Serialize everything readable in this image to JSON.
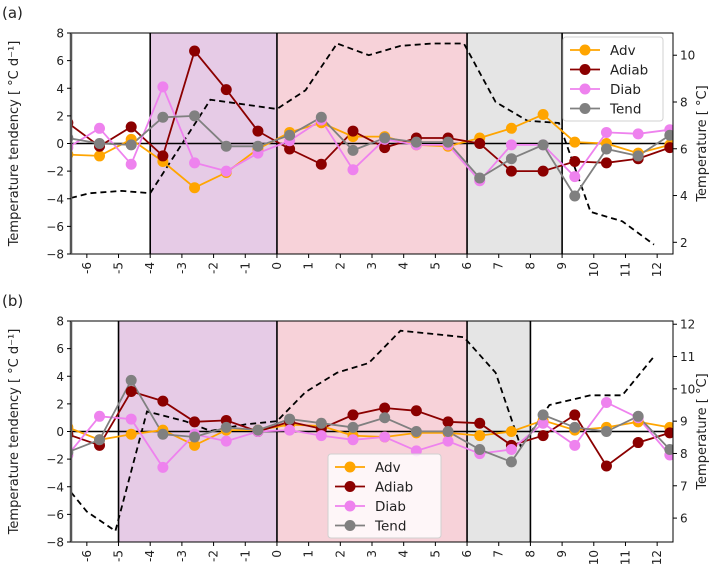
{
  "chart_data": [
    {
      "type": "line",
      "panel_label": "(a)",
      "xlabel": "",
      "ylabel": "Temperature tendency [$^\\circ C\\,d^{-1}$]",
      "ylabel_text": "Temperature tendency [ °C d⁻¹]",
      "y2label_text": "Temperature [ °C]",
      "xlim": [
        -6.5,
        12.5
      ],
      "ylim": [
        -8,
        8
      ],
      "y2lim": [
        1.5,
        10.95
      ],
      "xticks": [
        -6,
        -5,
        -4,
        -3,
        -2,
        -1,
        0,
        1,
        2,
        3,
        4,
        5,
        6,
        7,
        8,
        9,
        10,
        11,
        12
      ],
      "xtick_labels": [
        "-6",
        "-5",
        "-4",
        "-3",
        "-2",
        "-1",
        "0",
        "1",
        "2",
        "3",
        "4",
        "5",
        "6",
        "7",
        "8",
        "9",
        "10",
        "11",
        "12"
      ],
      "yticks": [
        8,
        6,
        4,
        2,
        0,
        -2,
        -4,
        -6,
        -8
      ],
      "ytick_labels": [
        "8",
        "6",
        "4",
        "2",
        "0",
        "−2",
        "−4",
        "−6",
        "−8"
      ],
      "y2ticks": [
        10,
        8,
        6,
        4,
        2
      ],
      "y2tick_labels": [
        "10",
        "8",
        "6",
        "4",
        "2"
      ],
      "legend_position": "upper-right",
      "shaded_regions": [
        {
          "from": -4,
          "to": 0,
          "color": "#e6cbe6"
        },
        {
          "from": 0,
          "to": 6,
          "color": "#f7d2d9"
        },
        {
          "from": 6,
          "to": 9,
          "color": "#e5e5e5"
        }
      ],
      "vertical_lines": [
        -4,
        0,
        6,
        9
      ],
      "x": [
        -6.6,
        -5.6,
        -4.6,
        -3.6,
        -2.6,
        -1.6,
        -0.6,
        0.4,
        1.4,
        2.4,
        3.4,
        4.4,
        5.4,
        6.4,
        7.4,
        8.4,
        9.4,
        10.4,
        11.4,
        12.4
      ],
      "series": [
        {
          "name": "Adv",
          "color": "#ffa500",
          "values": [
            -0.8,
            -0.9,
            0.3,
            -1.3,
            -3.2,
            -2.1,
            -0.4,
            0.8,
            1.5,
            0.5,
            0.5,
            -0.1,
            -0.2,
            0.4,
            1.1,
            2.1,
            0.1,
            0.0,
            -0.7,
            -0.1
          ]
        },
        {
          "name": "Adiab",
          "color": "#8b0000",
          "values": [
            1.5,
            -0.2,
            1.2,
            -0.9,
            6.7,
            3.9,
            0.9,
            -0.4,
            -1.5,
            0.9,
            -0.3,
            0.4,
            0.4,
            0.0,
            -2.0,
            -2.0,
            -1.3,
            -1.4,
            -1.1,
            -0.3
          ]
        },
        {
          "name": "Diab",
          "color": "#ee82ee",
          "values": [
            -0.3,
            1.1,
            -1.5,
            4.1,
            -1.4,
            -2.0,
            -0.7,
            0.2,
            1.7,
            -1.9,
            0.3,
            -0.1,
            -0.1,
            -2.7,
            -0.1,
            -0.1,
            -2.4,
            0.8,
            0.7,
            1.0
          ]
        },
        {
          "name": "Tend",
          "color": "#808080",
          "values": [
            0.4,
            0.0,
            -0.1,
            1.9,
            2.0,
            -0.2,
            -0.2,
            0.6,
            1.9,
            -0.5,
            0.4,
            0.1,
            0.1,
            -2.5,
            -1.1,
            -0.1,
            -3.8,
            -0.4,
            -0.9,
            0.6
          ]
        }
      ],
      "temperature": {
        "name": "Temperature",
        "axis": "right",
        "style": "dashed",
        "color": "#000000",
        "x": [
          -6.5,
          -5.9,
          -4.9,
          -4.0,
          -2.1,
          0.0,
          0.9,
          1.9,
          2.9,
          3.9,
          4.9,
          5.9,
          6.9,
          7.9,
          8.9,
          9.9,
          10.9,
          11.9
        ],
        "values": [
          3.9,
          4.1,
          4.2,
          4.1,
          8.1,
          7.7,
          8.5,
          10.5,
          10.0,
          10.4,
          10.5,
          10.5,
          8.0,
          7.2,
          7.1,
          3.3,
          2.9,
          1.9
        ]
      }
    },
    {
      "type": "line",
      "panel_label": "(b)",
      "xlabel": "",
      "ylabel": "Temperature tendency [$^\\circ C\\,d^{-1}$]",
      "ylabel_text": "Temperature tendency [ °C d⁻¹]",
      "y2label_text": "Temperature [ °C]",
      "xlim": [
        -6.5,
        12.5
      ],
      "ylim": [
        -8,
        8
      ],
      "y2lim": [
        5.26,
        12.1
      ],
      "xticks": [
        -6,
        -5,
        -4,
        -3,
        -2,
        -1,
        0,
        1,
        2,
        3,
        4,
        5,
        6,
        7,
        8,
        9,
        10,
        11,
        12
      ],
      "xtick_labels": [
        "-6",
        "-5",
        "-4",
        "-3",
        "-2",
        "-1",
        "0",
        "1",
        "2",
        "3",
        "4",
        "5",
        "6",
        "7",
        "8",
        "9",
        "10",
        "11",
        "12"
      ],
      "yticks": [
        8,
        6,
        4,
        2,
        0,
        -2,
        -4,
        -6,
        -8
      ],
      "ytick_labels": [
        "8",
        "6",
        "4",
        "2",
        "0",
        "−2",
        "−4",
        "−6",
        "−8"
      ],
      "y2ticks": [
        12,
        11,
        10,
        9,
        8,
        7,
        6
      ],
      "y2tick_labels": [
        "12",
        "11",
        "10",
        "9",
        "8",
        "7",
        "6"
      ],
      "legend_position": "lower-center",
      "shaded_regions": [
        {
          "from": -5,
          "to": 0,
          "color": "#e6cbe6"
        },
        {
          "from": 0,
          "to": 6,
          "color": "#f7d2d9"
        },
        {
          "from": 6,
          "to": 8,
          "color": "#e5e5e5"
        }
      ],
      "vertical_lines": [
        -5,
        0,
        6,
        8
      ],
      "x": [
        -6.6,
        -5.6,
        -4.6,
        -3.6,
        -2.6,
        -1.6,
        -0.6,
        0.4,
        1.4,
        2.4,
        3.4,
        4.4,
        5.4,
        6.4,
        7.4,
        8.4,
        9.4,
        10.4,
        11.4,
        12.4
      ],
      "series": [
        {
          "name": "Adv",
          "color": "#ffa500",
          "values": [
            0.3,
            -0.6,
            -0.2,
            0.1,
            -1.0,
            0.1,
            0.1,
            0.5,
            0.4,
            -0.3,
            -0.4,
            -0.1,
            -0.1,
            -0.3,
            0.0,
            0.8,
            0.1,
            0.3,
            0.7,
            0.3
          ]
        },
        {
          "name": "Adiab",
          "color": "#8b0000",
          "values": [
            -0.2,
            -1.0,
            2.9,
            2.2,
            0.7,
            0.8,
            0.0,
            0.7,
            0.2,
            1.2,
            1.7,
            1.5,
            0.7,
            0.6,
            -1.0,
            -0.3,
            1.2,
            -2.5,
            -0.8,
            -0.1
          ]
        },
        {
          "name": "Diab",
          "color": "#ee82ee",
          "values": [
            -1.7,
            1.1,
            0.9,
            -2.6,
            -0.2,
            -0.7,
            0.0,
            0.1,
            -0.3,
            -0.6,
            -0.4,
            -1.4,
            -0.7,
            -1.6,
            -1.3,
            0.6,
            -1.0,
            2.1,
            1.0,
            -1.7
          ]
        },
        {
          "name": "Tend",
          "color": "#808080",
          "values": [
            -1.5,
            -0.6,
            3.7,
            -0.2,
            -0.4,
            0.3,
            0.1,
            0.9,
            0.6,
            0.3,
            1.0,
            0.0,
            0.0,
            -1.3,
            -2.2,
            1.2,
            0.3,
            0.0,
            1.1,
            -1.3
          ]
        }
      ],
      "temperature": {
        "name": "Temperature",
        "axis": "right",
        "style": "dashed",
        "color": "#000000",
        "x": [
          -6.5,
          -6.0,
          -5.1,
          -4.1,
          -2.9,
          -2.1,
          -1.0,
          0.0,
          0.9,
          1.9,
          2.9,
          3.9,
          4.9,
          5.9,
          6.9,
          7.7,
          8.6,
          9.9,
          10.9,
          11.9
        ],
        "values": [
          6.8,
          6.2,
          5.6,
          9.3,
          9.0,
          8.7,
          8.9,
          9.0,
          9.9,
          10.5,
          10.8,
          11.8,
          11.7,
          11.6,
          10.5,
          8.2,
          9.5,
          9.8,
          9.8,
          11.0
        ]
      }
    }
  ]
}
